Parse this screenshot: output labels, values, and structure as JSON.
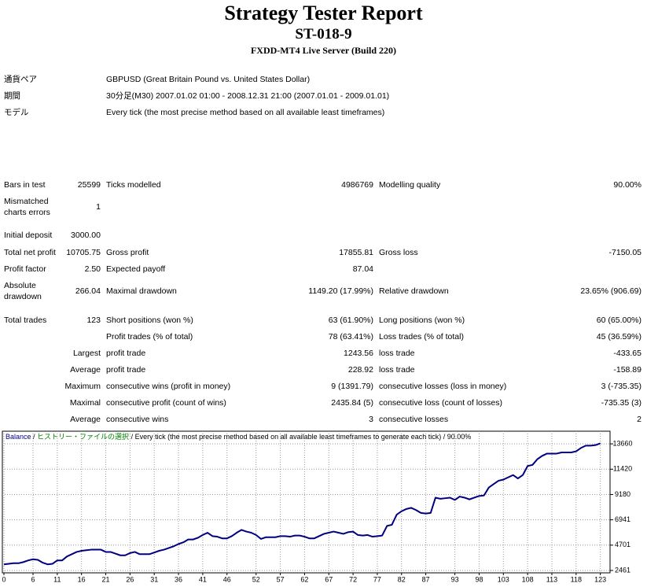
{
  "header": {
    "title": "Strategy Tester Report",
    "subtitle": "ST-018-9",
    "server": "FXDD-MT4 Live Server (Build 220)"
  },
  "info": [
    [
      "通貨ペア",
      "GBPUSD (Great Britain Pound vs. United States Dollar)"
    ],
    [
      "期間",
      "30分足(M30) 2007.01.02 01:00 - 2008.12.31 21:00 (2007.01.01 - 2009.01.01)"
    ],
    [
      "モデル",
      "Every tick (the most precise method based on all available least timeframes)"
    ]
  ],
  "stats": {
    "rows": [
      [
        "Bars in test",
        "25599",
        "Ticks modelled",
        "4986769",
        "Modelling quality",
        "90.00%"
      ],
      [
        "Mismatched charts errors",
        "1"
      ],
      [
        "Initial deposit",
        "3000.00"
      ],
      [
        "Total net profit",
        "10705.75",
        "Gross profit",
        "17855.81",
        "Gross loss",
        "-7150.05"
      ],
      [
        "Profit factor",
        "2.50",
        "Expected payoff",
        "87.04"
      ],
      [
        "Absolute drawdown",
        "266.04",
        "Maximal drawdown",
        "1149.20 (17.99%)",
        "Relative drawdown",
        "23.65% (906.69)"
      ],
      [
        "Total trades",
        "123",
        "Short positions (won %)",
        "63 (61.90%)",
        "Long positions (won %)",
        "60 (65.00%)"
      ],
      [
        null,
        null,
        "Profit trades (% of total)",
        "78 (63.41%)",
        "Loss trades (% of total)",
        "45 (36.59%)"
      ],
      [
        null,
        "Largest",
        "profit trade",
        "1243.56",
        "loss trade",
        "-433.65"
      ],
      [
        null,
        "Average",
        "profit trade",
        "228.92",
        "loss trade",
        "-158.89"
      ],
      [
        null,
        "Maximum",
        "consecutive wins (profit in money)",
        "9 (1391.79)",
        "consecutive losses (loss in money)",
        "3 (-735.35)"
      ],
      [
        null,
        "Maximal",
        "consecutive profit (count of wins)",
        "2435.84 (5)",
        "consecutive loss (count of losses)",
        "-735.35 (3)"
      ],
      [
        null,
        "Average",
        "consecutive wins",
        "3",
        "consecutive losses",
        "2"
      ]
    ]
  },
  "chart_data": {
    "type": "line",
    "legend_text": [
      " / ",
      "ヒストリー・ファイルの選択",
      " / Every tick (the most precise method based on all available least timeframes to generate each tick) / 90.00%"
    ],
    "legend_text_colors": [
      "#000000",
      "#008000",
      "#000000"
    ],
    "x": [
      0,
      1,
      2,
      3,
      4,
      5,
      6,
      7,
      8,
      9,
      10,
      11,
      12,
      13,
      14,
      15,
      16,
      17,
      18,
      19,
      20,
      21,
      22,
      23,
      24,
      25,
      26,
      27,
      28,
      29,
      30,
      31,
      32,
      33,
      34,
      35,
      36,
      37,
      38,
      39,
      40,
      41,
      42,
      43,
      44,
      45,
      46,
      47,
      48,
      49,
      50,
      51,
      52,
      53,
      54,
      55,
      56,
      57,
      58,
      59,
      60,
      61,
      62,
      63,
      64,
      65,
      66,
      67,
      68,
      69,
      70,
      71,
      72,
      73,
      74,
      75,
      76,
      77,
      78,
      79,
      80,
      81,
      82,
      83,
      84,
      85,
      86,
      87,
      88,
      89,
      90,
      91,
      92,
      93,
      94,
      95,
      96,
      97,
      98,
      99,
      100,
      101,
      102,
      103,
      104,
      105,
      106,
      107,
      108,
      109,
      110,
      111,
      112,
      113,
      114,
      115,
      116,
      117,
      118,
      119,
      120,
      121,
      122,
      123
    ],
    "series": [
      {
        "name": "Balance",
        "color": "#000080",
        "values": [
          3000,
          3050,
          3100,
          3100,
          3200,
          3350,
          3450,
          3400,
          3150,
          3000,
          3050,
          3350,
          3350,
          3700,
          3900,
          4100,
          4200,
          4250,
          4300,
          4300,
          4300,
          4100,
          4100,
          3950,
          3800,
          3800,
          4000,
          4100,
          3900,
          3900,
          3900,
          4050,
          4200,
          4300,
          4450,
          4600,
          4800,
          4950,
          5200,
          5200,
          5350,
          5600,
          5800,
          5500,
          5450,
          5300,
          5300,
          5500,
          5800,
          6050,
          5900,
          5800,
          5600,
          5250,
          5400,
          5400,
          5400,
          5500,
          5500,
          5450,
          5550,
          5550,
          5450,
          5300,
          5300,
          5500,
          5700,
          5800,
          5900,
          5800,
          5700,
          5850,
          5900,
          5600,
          5550,
          5600,
          5450,
          5500,
          5550,
          6400,
          6500,
          7400,
          7700,
          7900,
          8000,
          7800,
          7550,
          7500,
          7550,
          8900,
          8800,
          8850,
          8900,
          8700,
          9000,
          8900,
          8750,
          8900,
          9050,
          9100,
          9800,
          10100,
          10400,
          10500,
          10700,
          10900,
          10600,
          10900,
          11700,
          11800,
          12300,
          12600,
          12800,
          12800,
          12800,
          12900,
          12900,
          12900,
          13000,
          13300,
          13500,
          13500,
          13550,
          13706
        ]
      }
    ],
    "xlim": [
      0,
      125
    ],
    "xticks": [
      0,
      6,
      11,
      16,
      21,
      26,
      31,
      36,
      41,
      46,
      52,
      57,
      62,
      67,
      72,
      77,
      82,
      87,
      93,
      98,
      103,
      108,
      113,
      118,
      123
    ],
    "ylim": [
      2251,
      14780
    ],
    "yticks": [
      2461,
      4701,
      6941,
      9180,
      11420,
      13660
    ],
    "grid": true
  }
}
